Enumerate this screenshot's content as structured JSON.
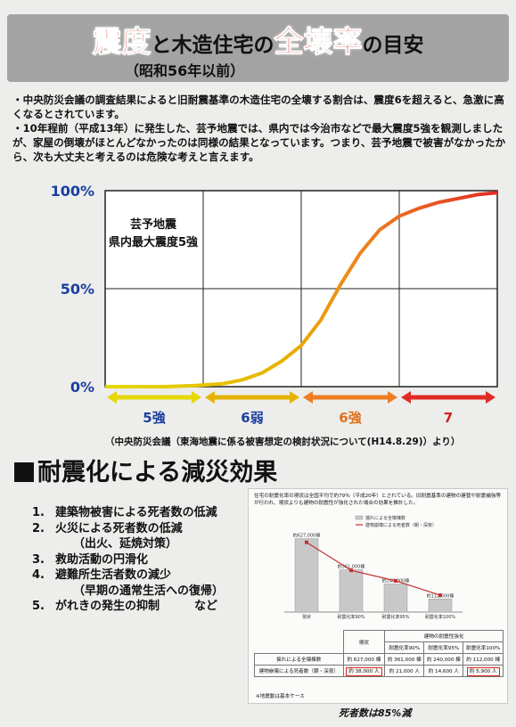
{
  "title": {
    "part1": "震度",
    "part2": "と木造住宅の",
    "part3": "全壊率",
    "part4": "の目安",
    "subtitle": "（昭和56年以前）"
  },
  "bullets": [
    "・中央防災会議の調査結果によると旧耐震基準の木造住宅の全壊する割合は、震度6を超えると、急激に高くなるとされています。",
    "・10年程前（平成13年）に発生した、芸予地震では、県内では今治市などで最大震度5強を観測しましたが、家屋の倒壊がほとんどなかったのは同様の結果となっています。つまり、芸予地震で被害がなかったから、次も大丈夫と考えるのは危険な考えと言えます。"
  ],
  "chart_data": {
    "type": "line",
    "title": "",
    "xlabel": "",
    "ylabel": "",
    "yticks": [
      "100%",
      "50%",
      "0%"
    ],
    "ylim": [
      0,
      100
    ],
    "categories": [
      "5強",
      "6弱",
      "6強",
      "7"
    ],
    "category_colors": [
      "#e6d800",
      "#e6b400",
      "#ef7d22",
      "#e02a24"
    ],
    "x": [
      0,
      0.3,
      0.6,
      0.9,
      1.2,
      1.4,
      1.6,
      1.8,
      2.0,
      2.2,
      2.4,
      2.6,
      2.8,
      3.0,
      3.2,
      3.4,
      3.6,
      3.8,
      4.0
    ],
    "y": [
      0,
      0,
      0,
      0.5,
      1.5,
      3.5,
      7,
      13,
      21,
      34,
      52,
      68,
      80,
      87,
      91,
      94,
      96,
      98,
      99
    ],
    "annotation": {
      "line1": "芸予地震",
      "line2": "県内最大震度5強"
    }
  },
  "source": "（中央防災会議（東海地震に係る被害想定の検討状況について(H14.8.29)）より）",
  "section_title": "耐震化による減災効果",
  "effects": [
    {
      "num": "1.",
      "text": "建築物被害による死者数の低減"
    },
    {
      "num": "2.",
      "text": "火災による死者数の低減"
    },
    {
      "num": "",
      "text": "（出火、延焼対策）"
    },
    {
      "num": "3.",
      "text": "救助活動の円滑化"
    },
    {
      "num": "4.",
      "text": "避難所生活者数の減少"
    },
    {
      "num": "",
      "text": "（早期の通常生活への復帰）"
    },
    {
      "num": "5.",
      "text": "がれきの発生の抑制　　　など"
    }
  ],
  "inset": {
    "description": "住宅の耐震化率の現状は全国平均で約79％（平成20年）とされている。旧耐震基準の建物の建替や耐震補強等が行われ、現状よりも建物の耐震性が強化された場合の効果を推計した。",
    "legend": [
      "揺れによる全壊棟数",
      "建物崩壊による死者数（朝・深夜）"
    ],
    "bars": [
      {
        "label": "現状",
        "value": 627000,
        "label_text": "約627,000棟"
      },
      {
        "label": "耐震化率90%",
        "value": 361000,
        "label_text": "約361,000棟"
      },
      {
        "label": "耐震化率95%",
        "value": 240000,
        "label_text": "約240,000棟"
      },
      {
        "label": "耐震化率100%",
        "value": 112000,
        "label_text": "約112,000棟"
      }
    ],
    "deaths": [
      38000,
      21000,
      14600,
      5900
    ],
    "table": {
      "group_header": "建物の耐震性強化",
      "headers": [
        "",
        "現状",
        "耐震化率90%",
        "耐震化率95%",
        "耐震化率100%"
      ],
      "row1_label": "揺れによる全壊棟数",
      "row1": [
        "約 627,000 棟",
        "約 361,000 棟",
        "約 240,000 棟",
        "約 112,000 棟"
      ],
      "row2_label": "建物崩壊による死者数（朝・深夜）",
      "row2": [
        "約 38,000 人",
        "約 21,000 人",
        "約 14,600 人",
        "約 5,900 人"
      ],
      "note": "※地震動は基本ケース"
    }
  },
  "caption": "死者数は85%減"
}
